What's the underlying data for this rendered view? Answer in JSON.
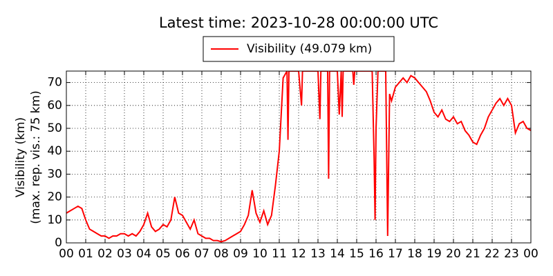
{
  "chart_data": {
    "type": "line",
    "title": "Latest time: 2023-10-28 00:00:00 UTC",
    "y_label": [
      "Visibility (km)",
      "(max. rep. vis.: 75 km)"
    ],
    "x": [
      0,
      0.2,
      0.4,
      0.6,
      0.8,
      1.0,
      1.2,
      1.4,
      1.6,
      1.8,
      2.0,
      2.2,
      2.4,
      2.6,
      2.8,
      3.0,
      3.2,
      3.4,
      3.6,
      3.8,
      4.0,
      4.2,
      4.4,
      4.6,
      4.8,
      5.0,
      5.2,
      5.4,
      5.6,
      5.8,
      6.0,
      6.2,
      6.4,
      6.6,
      6.8,
      7.0,
      7.2,
      7.4,
      7.6,
      7.8,
      8.0,
      8.2,
      8.4,
      8.6,
      8.8,
      9.0,
      9.2,
      9.4,
      9.6,
      9.8,
      10.0,
      10.2,
      10.4,
      10.6,
      10.8,
      11.0,
      11.2,
      11.4,
      11.45,
      11.5,
      12.0,
      12.15,
      12.2,
      13.0,
      13.1,
      13.15,
      13.5,
      13.55,
      13.6,
      14.0,
      14.1,
      14.2,
      14.25,
      14.3,
      14.8,
      14.85,
      14.9,
      15.8,
      15.9,
      15.95,
      16.0,
      16.1,
      16.5,
      16.6,
      16.7,
      16.8,
      17.0,
      17.2,
      17.4,
      17.6,
      17.8,
      18.0,
      18.2,
      18.4,
      18.6,
      18.8,
      19.0,
      19.2,
      19.4,
      19.6,
      19.8,
      20.0,
      20.2,
      20.4,
      20.6,
      20.8,
      21.0,
      21.2,
      21.4,
      21.6,
      21.8,
      22.0,
      22.2,
      22.4,
      22.6,
      22.8,
      23.0,
      23.2,
      23.4,
      23.6,
      23.8,
      24.0
    ],
    "series": [
      {
        "name": "Visibility (49.079 km)",
        "color": "#ff0000",
        "values": [
          13,
          14,
          15,
          16,
          15,
          10,
          6,
          5,
          4,
          3,
          3,
          2,
          3,
          3,
          4,
          4,
          3,
          4,
          3,
          5,
          8,
          13,
          7,
          5,
          6,
          8,
          7,
          10,
          20,
          13,
          12,
          9,
          6,
          10,
          4,
          3,
          2,
          2,
          1,
          1,
          0.5,
          1,
          2,
          3,
          4,
          5,
          8,
          12,
          23,
          13,
          9,
          14,
          8,
          12,
          25,
          40,
          72,
          75,
          45,
          75,
          75,
          60,
          75,
          75,
          54,
          75,
          75,
          28,
          75,
          75,
          56,
          75,
          55,
          75,
          75,
          69,
          75,
          75,
          37,
          10,
          50,
          75,
          75,
          3,
          65,
          62,
          68,
          70,
          72,
          70,
          73,
          72,
          70,
          68,
          66,
          62,
          57,
          55,
          58,
          54,
          53,
          55,
          52,
          53,
          49,
          47,
          44,
          43,
          47,
          50,
          55,
          58,
          61,
          63,
          60,
          63,
          60,
          48,
          52,
          53,
          50,
          49.079
        ]
      }
    ],
    "xlim": [
      0,
      24
    ],
    "xticks": [
      {
        "value": 0,
        "label": "00"
      },
      {
        "value": 1,
        "label": "01"
      },
      {
        "value": 2,
        "label": "02"
      },
      {
        "value": 3,
        "label": "03"
      },
      {
        "value": 4,
        "label": "04"
      },
      {
        "value": 5,
        "label": "05"
      },
      {
        "value": 6,
        "label": "06"
      },
      {
        "value": 7,
        "label": "07"
      },
      {
        "value": 8,
        "label": "08"
      },
      {
        "value": 9,
        "label": "09"
      },
      {
        "value": 10,
        "label": "10"
      },
      {
        "value": 11,
        "label": "11"
      },
      {
        "value": 12,
        "label": "12"
      },
      {
        "value": 13,
        "label": "13"
      },
      {
        "value": 14,
        "label": "14"
      },
      {
        "value": 15,
        "label": "15"
      },
      {
        "value": 16,
        "label": "16"
      },
      {
        "value": 17,
        "label": "17"
      },
      {
        "value": 18,
        "label": "18"
      },
      {
        "value": 19,
        "label": "19"
      },
      {
        "value": 20,
        "label": "20"
      },
      {
        "value": 21,
        "label": "21"
      },
      {
        "value": 22,
        "label": "22"
      },
      {
        "value": 23,
        "label": "23"
      },
      {
        "value": 24,
        "label": "00"
      }
    ],
    "ylim": [
      0,
      75
    ],
    "yticks": [
      0,
      10,
      20,
      30,
      40,
      50,
      60,
      70
    ],
    "grid": true
  }
}
